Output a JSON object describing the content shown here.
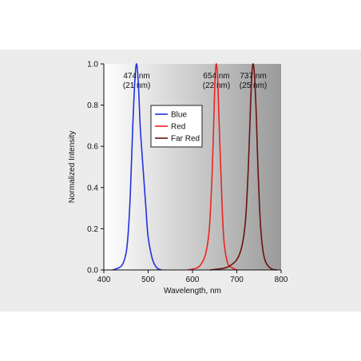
{
  "chart_data": {
    "type": "line",
    "title": "",
    "xlabel": "Wavelength, nm",
    "ylabel": "Normalized Intensity",
    "xlim": [
      400,
      800
    ],
    "ylim": [
      0,
      1.0
    ],
    "xticks": [
      400,
      500,
      600,
      700,
      800
    ],
    "yticks": [
      0.0,
      0.2,
      0.4,
      0.6,
      0.8,
      1.0
    ],
    "xtick_labels": [
      "400",
      "500",
      "600",
      "700",
      "800"
    ],
    "ytick_labels": [
      "0.0",
      "0.2",
      "0.4",
      "0.6",
      "0.8",
      "1.0"
    ],
    "grid": false,
    "legend_position": "top-left",
    "series": [
      {
        "name": "Blue",
        "color": "#2233dd",
        "x": [
          420,
          440,
          450,
          455,
          460,
          465,
          470,
          474,
          478,
          482,
          486,
          490,
          495,
          500,
          510,
          520,
          530
        ],
        "y": [
          0.0,
          0.02,
          0.08,
          0.18,
          0.38,
          0.68,
          0.92,
          1.0,
          0.9,
          0.7,
          0.57,
          0.45,
          0.3,
          0.16,
          0.05,
          0.01,
          0.0
        ]
      },
      {
        "name": "Red",
        "color": "#ee2222",
        "x": [
          590,
          610,
          620,
          630,
          638,
          644,
          648,
          651,
          654,
          657,
          660,
          664,
          668,
          672,
          680,
          690,
          700
        ],
        "y": [
          0.0,
          0.01,
          0.03,
          0.08,
          0.2,
          0.45,
          0.72,
          0.93,
          1.0,
          0.92,
          0.72,
          0.48,
          0.25,
          0.12,
          0.03,
          0.01,
          0.0
        ]
      },
      {
        "name": "Far Red",
        "color": "#6b1212",
        "x": [
          640,
          660,
          680,
          700,
          712,
          720,
          726,
          731,
          734,
          737,
          740,
          744,
          748,
          754,
          762,
          775,
          790
        ],
        "y": [
          0.0,
          0.005,
          0.015,
          0.05,
          0.12,
          0.25,
          0.5,
          0.8,
          0.95,
          1.0,
          0.94,
          0.75,
          0.48,
          0.2,
          0.06,
          0.01,
          0.0
        ]
      }
    ],
    "annotations": [
      {
        "line1": "474 nm",
        "line2": "(21 nm)",
        "x": 474
      },
      {
        "line1": "654 nm",
        "line2": "(22 nm)",
        "x": 654
      },
      {
        "line1": "737 nm",
        "line2": "(25 nm)",
        "x": 737
      }
    ],
    "colors": {
      "page_bg": "#ececec",
      "plot_bg_left": "#ffffff",
      "plot_bg_right": "#9a9a9a",
      "axis": "#111111"
    }
  }
}
